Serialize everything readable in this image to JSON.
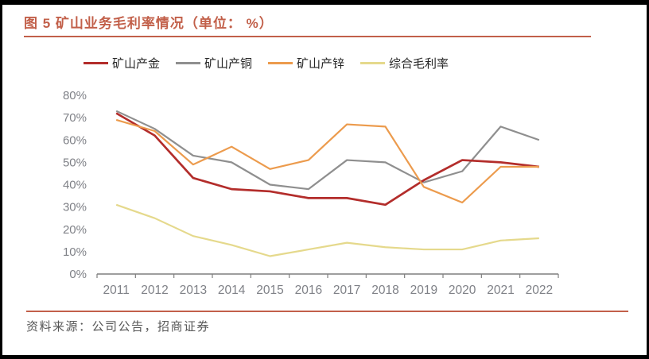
{
  "header": {
    "title": "图 5 矿山业务毛利率情况（单位： %）",
    "accent_color": "#C2604A"
  },
  "chart_data": {
    "type": "line",
    "title": "矿山业务毛利率情况",
    "unit": "%",
    "categories": [
      "2011",
      "2012",
      "2013",
      "2014",
      "2015",
      "2016",
      "2017",
      "2018",
      "2019",
      "2020",
      "2021",
      "2022"
    ],
    "series": [
      {
        "name": "矿山产金",
        "color": "#B32D2B",
        "values": [
          72,
          62,
          43,
          38,
          37,
          34,
          34,
          31,
          42,
          51,
          50,
          48
        ]
      },
      {
        "name": "矿山产铜",
        "color": "#8F8F8F",
        "values": [
          73,
          65,
          53,
          50,
          40,
          38,
          51,
          50,
          41,
          46,
          66,
          60
        ]
      },
      {
        "name": "矿山产锌",
        "color": "#EC9B4D",
        "values": [
          69,
          64,
          49,
          57,
          47,
          51,
          67,
          66,
          39,
          32,
          48,
          48
        ]
      },
      {
        "name": "综合毛利率",
        "color": "#E5D98C",
        "values": [
          31,
          25,
          17,
          13,
          8,
          11,
          14,
          12,
          11,
          11,
          15,
          16
        ]
      }
    ],
    "ylim": [
      0,
      80
    ],
    "ytick_step": 10,
    "ytick_suffix": "%",
    "grid": false,
    "legend_position": "top",
    "axis_color": "#7F7F7F",
    "tick_label_color": "#7F8187"
  },
  "footer": {
    "source": "资料来源：公司公告，招商证券"
  }
}
